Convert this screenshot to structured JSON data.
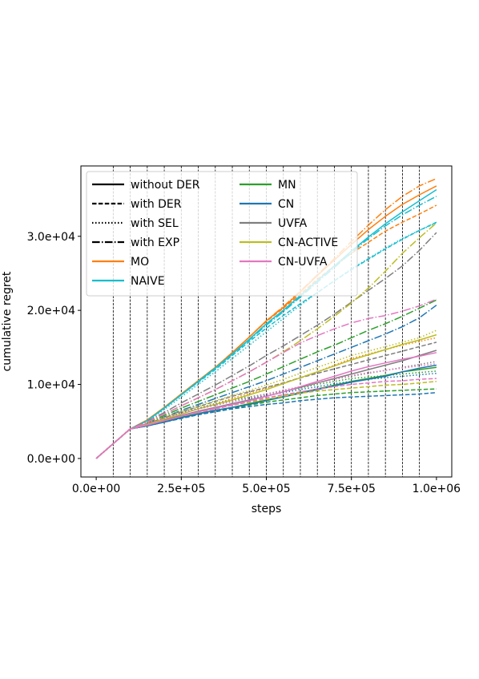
{
  "chart_data": {
    "type": "line",
    "title": "",
    "xlabel": "steps",
    "ylabel": "cumulative regret",
    "xlim": [
      -45000,
      1045000
    ],
    "ylim": [
      -2500,
      39500
    ],
    "x_ticks": [
      0,
      250000,
      500000,
      750000,
      1000000
    ],
    "x_tick_labels": [
      "0.0e+00",
      "2.5e+05",
      "5.0e+05",
      "7.5e+05",
      "1.0e+06"
    ],
    "y_ticks": [
      0,
      10000,
      20000,
      30000
    ],
    "y_tick_labels": [
      "0.0e+00",
      "1.0e+04",
      "2.0e+04",
      "3.0e+04"
    ],
    "grid": false,
    "task_switch_lines": [
      50000,
      100000,
      150000,
      200000,
      250000,
      300000,
      350000,
      400000,
      450000,
      500000,
      550000,
      600000,
      650000,
      700000,
      750000,
      800000,
      850000,
      900000,
      950000
    ],
    "legend_position": "upper-left",
    "legend_entries": [
      {
        "label": "without DER",
        "color": "#000000",
        "style": "solid"
      },
      {
        "label": "with DER",
        "color": "#000000",
        "style": "dashed"
      },
      {
        "label": "with SEL",
        "color": "#000000",
        "style": "dotted"
      },
      {
        "label": "with EXP",
        "color": "#000000",
        "style": "dashdot"
      },
      {
        "label": "MO",
        "color": "#ff7f0e",
        "style": "solid"
      },
      {
        "label": "NAIVE",
        "color": "#17becf",
        "style": "solid"
      },
      {
        "label": "MN",
        "color": "#2ca02c",
        "style": "solid"
      },
      {
        "label": "CN",
        "color": "#1f77b4",
        "style": "solid"
      },
      {
        "label": "UVFA",
        "color": "#7f7f7f",
        "style": "solid"
      },
      {
        "label": "CN-ACTIVE",
        "color": "#bcbd22",
        "style": "solid"
      },
      {
        "label": "CN-UVFA",
        "color": "#e377c2",
        "style": "solid"
      }
    ],
    "x": [
      0,
      50000,
      100000,
      150000,
      200000,
      250000,
      300000,
      350000,
      400000,
      450000,
      500000,
      550000,
      600000,
      650000,
      700000,
      750000,
      800000,
      850000,
      900000,
      950000,
      1000000
    ],
    "series": [
      {
        "group": "MO",
        "style": "solid",
        "color": "#ff7f0e",
        "values": [
          0,
          2000,
          4000,
          5200,
          6900,
          8700,
          10500,
          12300,
          14300,
          16400,
          18600,
          20400,
          22500,
          24700,
          26800,
          28900,
          30900,
          32700,
          34300,
          35600,
          36800
        ]
      },
      {
        "group": "MO",
        "style": "dashed",
        "color": "#ff7f0e",
        "values": [
          0,
          2000,
          4000,
          5200,
          6900,
          8700,
          10500,
          12300,
          14300,
          16400,
          18500,
          20300,
          22200,
          24200,
          26000,
          27700,
          29200,
          30700,
          31900,
          33000,
          34200
        ]
      },
      {
        "group": "MO",
        "style": "dotted",
        "color": "#ff7f0e",
        "values": [
          0,
          2000,
          4000,
          4800,
          5500,
          6200,
          6800,
          7400,
          8100,
          8800,
          9500,
          10200,
          10900,
          11700,
          12600,
          13500,
          14100,
          14700,
          15300,
          15800,
          16300
        ]
      },
      {
        "group": "MO",
        "style": "dashdot",
        "color": "#ff7f0e",
        "values": [
          0,
          2000,
          4000,
          5200,
          6900,
          8700,
          10500,
          12300,
          14300,
          16400,
          18600,
          20500,
          22600,
          24800,
          27000,
          29300,
          31500,
          33600,
          35400,
          36800,
          37800
        ]
      },
      {
        "group": "NAIVE",
        "style": "solid",
        "color": "#17becf",
        "values": [
          0,
          2000,
          4000,
          5100,
          6800,
          8600,
          10400,
          12200,
          14100,
          16100,
          18200,
          20000,
          22000,
          24000,
          26000,
          28000,
          29900,
          31700,
          33300,
          34800,
          36300
        ]
      },
      {
        "group": "NAIVE",
        "style": "dashed",
        "color": "#17becf",
        "values": [
          0,
          2000,
          4000,
          5100,
          6800,
          8600,
          10300,
          12000,
          13900,
          15800,
          17600,
          19300,
          20900,
          22400,
          24000,
          25500,
          26900,
          28300,
          29600,
          30800,
          31900
        ]
      },
      {
        "group": "NAIVE",
        "style": "dotted",
        "color": "#17becf",
        "values": [
          0,
          2000,
          4000,
          5000,
          6600,
          8300,
          10000,
          11700,
          13500,
          15300,
          17100,
          18900,
          20700,
          22400,
          24000,
          25600,
          27000,
          28400,
          29700,
          30800,
          31800
        ]
      },
      {
        "group": "NAIVE",
        "style": "dashdot",
        "color": "#17becf",
        "values": [
          0,
          2000,
          4000,
          5100,
          6800,
          8600,
          10400,
          12200,
          14100,
          16000,
          18000,
          19800,
          21800,
          23800,
          25800,
          27800,
          29700,
          31400,
          32900,
          34200,
          35400
        ]
      },
      {
        "group": "MN",
        "style": "solid",
        "color": "#2ca02c",
        "values": [
          0,
          2000,
          4000,
          4400,
          5000,
          5600,
          6100,
          6500,
          6900,
          7400,
          7900,
          8400,
          8900,
          9400,
          9900,
          10400,
          10800,
          11200,
          11700,
          12000,
          12300
        ]
      },
      {
        "group": "MN",
        "style": "dashed",
        "color": "#2ca02c",
        "values": [
          0,
          2000,
          4000,
          4400,
          5000,
          5500,
          6000,
          6400,
          6800,
          7200,
          7600,
          7900,
          8200,
          8500,
          8700,
          8900,
          9000,
          9100,
          9200,
          9300,
          9400
        ]
      },
      {
        "group": "MN",
        "style": "dotted",
        "color": "#2ca02c",
        "values": [
          0,
          2000,
          4000,
          4700,
          5400,
          6200,
          6800,
          7400,
          7900,
          8300,
          8700,
          9100,
          9500,
          10000,
          10400,
          10800,
          11000,
          11200,
          11400,
          11600,
          11800
        ]
      },
      {
        "group": "MN",
        "style": "dashdot",
        "color": "#2ca02c",
        "values": [
          0,
          2000,
          4000,
          4800,
          5800,
          6800,
          7700,
          8600,
          9500,
          10400,
          11400,
          12400,
          13400,
          14400,
          15300,
          16300,
          17300,
          18200,
          19200,
          20300,
          21400
        ]
      },
      {
        "group": "CN",
        "style": "solid",
        "color": "#1f77b4",
        "values": [
          0,
          2000,
          4000,
          4400,
          4900,
          5500,
          6000,
          6500,
          6900,
          7300,
          7800,
          8300,
          8800,
          9300,
          9800,
          10300,
          10700,
          11100,
          11700,
          12200,
          12600
        ]
      },
      {
        "group": "CN",
        "style": "dashed",
        "color": "#1f77b4",
        "values": [
          0,
          2000,
          4000,
          4400,
          4900,
          5400,
          5900,
          6300,
          6700,
          7000,
          7300,
          7500,
          7800,
          8000,
          8200,
          8300,
          8400,
          8500,
          8600,
          8700,
          8900
        ]
      },
      {
        "group": "CN",
        "style": "dotted",
        "color": "#1f77b4",
        "values": [
          0,
          2000,
          4000,
          4700,
          5400,
          6100,
          6700,
          7200,
          7700,
          8100,
          8500,
          8900,
          9300,
          9700,
          10100,
          10400,
          10700,
          10900,
          11100,
          11300,
          11500
        ]
      },
      {
        "group": "CN",
        "style": "dashdot",
        "color": "#1f77b4",
        "values": [
          0,
          2000,
          4000,
          4700,
          5600,
          6500,
          7300,
          8100,
          8900,
          9700,
          10500,
          11400,
          12300,
          13200,
          14100,
          15000,
          15900,
          16800,
          17800,
          19000,
          20700
        ]
      },
      {
        "group": "UVFA",
        "style": "solid",
        "color": "#7f7f7f",
        "values": [
          0,
          2000,
          4000,
          4500,
          5200,
          5800,
          6400,
          6900,
          7400,
          7900,
          8400,
          9000,
          9600,
          10200,
          10800,
          11400,
          12000,
          12600,
          13200,
          13900,
          14600
        ]
      },
      {
        "group": "UVFA",
        "style": "dashed",
        "color": "#7f7f7f",
        "values": [
          0,
          2000,
          4000,
          4700,
          5500,
          6300,
          7000,
          7700,
          8400,
          9000,
          9600,
          10200,
          10900,
          11500,
          12100,
          12700,
          13300,
          13900,
          14500,
          15100,
          15700
        ]
      },
      {
        "group": "UVFA",
        "style": "dotted",
        "color": "#7f7f7f",
        "values": [
          0,
          2000,
          4000,
          4700,
          5400,
          6100,
          6700,
          7200,
          7700,
          8200,
          8700,
          9200,
          9700,
          10200,
          10700,
          11100,
          11500,
          11900,
          12300,
          12700,
          13100
        ]
      },
      {
        "group": "UVFA",
        "style": "dashdot",
        "color": "#7f7f7f",
        "values": [
          0,
          2000,
          4000,
          5000,
          6200,
          7500,
          8700,
          9900,
          11200,
          12500,
          13900,
          15200,
          16600,
          18000,
          19500,
          21100,
          22700,
          24300,
          26000,
          28100,
          30500
        ]
      },
      {
        "group": "CN-ACTIVE",
        "style": "solid",
        "color": "#bcbd22",
        "values": [
          0,
          2000,
          4000,
          4600,
          5300,
          6000,
          6700,
          7300,
          7900,
          8600,
          9300,
          10100,
          10900,
          11700,
          12500,
          13300,
          14000,
          14700,
          15400,
          16000,
          16700
        ]
      },
      {
        "group": "CN-ACTIVE",
        "style": "dashed",
        "color": "#bcbd22",
        "values": [
          0,
          2000,
          4000,
          4500,
          5100,
          5700,
          6200,
          6700,
          7200,
          7600,
          8000,
          8400,
          8800,
          9100,
          9300,
          9500,
          9700,
          9900,
          10000,
          10200,
          10400
        ]
      },
      {
        "group": "CN-ACTIVE",
        "style": "dotted",
        "color": "#bcbd22",
        "values": [
          0,
          2000,
          4000,
          4800,
          5600,
          6400,
          7100,
          7800,
          8500,
          9200,
          9900,
          10700,
          11500,
          12300,
          13100,
          13900,
          14500,
          15100,
          15700,
          16300,
          17300
        ]
      },
      {
        "group": "CN-ACTIVE",
        "style": "dashdot",
        "color": "#bcbd22",
        "values": [
          0,
          2000,
          4000,
          4900,
          6000,
          7100,
          8200,
          9300,
          10500,
          11700,
          13000,
          14400,
          15900,
          17500,
          19200,
          21000,
          23000,
          25300,
          27700,
          29800,
          31800
        ]
      },
      {
        "group": "CN-UVFA",
        "style": "solid",
        "color": "#e377c2",
        "values": [
          0,
          2000,
          4000,
          4500,
          5100,
          5700,
          6300,
          6800,
          7300,
          7800,
          8400,
          9000,
          9700,
          10400,
          11100,
          11800,
          12400,
          12900,
          13400,
          13800,
          14300
        ]
      },
      {
        "group": "CN-UVFA",
        "style": "dashed",
        "color": "#e377c2",
        "values": [
          0,
          2000,
          4000,
          4500,
          5100,
          5700,
          6200,
          6700,
          7200,
          7700,
          8200,
          8600,
          9000,
          9400,
          9700,
          10000,
          10200,
          10400,
          10500,
          10700,
          10800
        ]
      },
      {
        "group": "CN-UVFA",
        "style": "dotted",
        "color": "#e377c2",
        "values": [
          0,
          2000,
          4000,
          4700,
          5400,
          6100,
          6700,
          7200,
          7700,
          8200,
          8700,
          9200,
          9700,
          10200,
          10700,
          11200,
          11600,
          11900,
          12200,
          12500,
          12800
        ]
      },
      {
        "group": "CN-UVFA",
        "style": "dashdot",
        "color": "#e377c2",
        "values": [
          0,
          2000,
          4000,
          4900,
          6000,
          7100,
          8200,
          9300,
          10500,
          11700,
          13000,
          14300,
          15600,
          16600,
          17500,
          18300,
          18900,
          19300,
          19900,
          20600,
          21500
        ]
      }
    ]
  }
}
